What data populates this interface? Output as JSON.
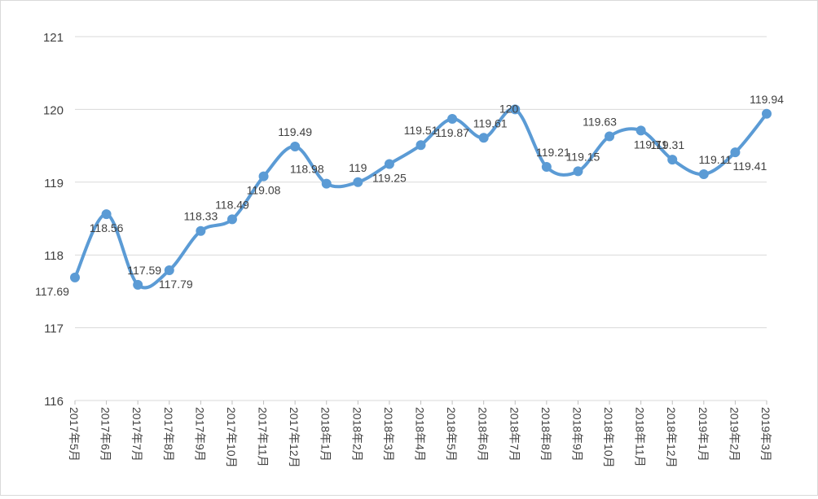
{
  "chart_data": {
    "type": "line",
    "title": "",
    "xlabel": "",
    "ylabel": "",
    "ylim": [
      116,
      121
    ],
    "yticks": [
      "116",
      "117",
      "118",
      "119",
      "120",
      "121"
    ],
    "grid": true,
    "legend": "none",
    "smooth": true,
    "line_color": "#5b9bd5",
    "categories": [
      "2017年5月",
      "2017年6月",
      "2017年7月",
      "2017年8月",
      "2017年9月",
      "2017年10月",
      "2017年11月",
      "2017年12月",
      "2018年1月",
      "2018年2月",
      "2018年3月",
      "2018年4月",
      "2018年5月",
      "2018年6月",
      "2018年7月",
      "2018年8月",
      "2018年9月",
      "2018年10月",
      "2018年11月",
      "2018年12月",
      "2019年1月",
      "2019年2月",
      "2019年3月"
    ],
    "values": [
      117.69,
      118.56,
      117.59,
      117.79,
      118.33,
      118.49,
      119.08,
      119.49,
      118.98,
      119,
      119.25,
      119.51,
      119.87,
      119.61,
      120,
      119.21,
      119.15,
      119.63,
      119.71,
      119.31,
      119.11,
      119.41,
      119.94
    ],
    "data_labels": [
      "117.69",
      "118.56",
      "117.59",
      "117.79",
      "118.33",
      "118.49",
      "119.08",
      "119.49",
      "118.98",
      "119",
      "119.25",
      "119.51",
      "119.87",
      "119.61",
      "120",
      "119.21",
      "119.15",
      "119.63",
      "119.71",
      "119.31",
      "119.11",
      "119.41",
      "119.94"
    ]
  }
}
